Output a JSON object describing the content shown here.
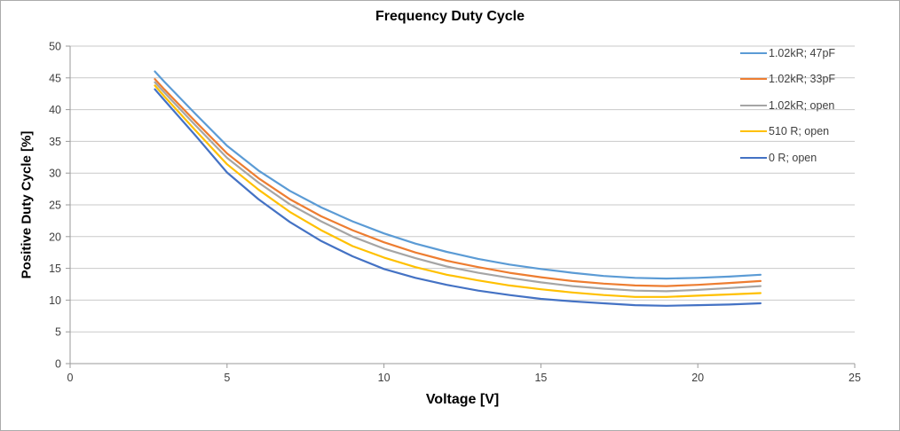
{
  "chart": {
    "title": "Frequency Duty Cycle",
    "x_axis_label": "Voltage [V]",
    "y_axis_label": "Positive Duty Cycle [%]"
  },
  "chart_data": {
    "type": "line",
    "title": "Frequency Duty Cycle",
    "xlabel": "Voltage [V]",
    "ylabel": "Positive Duty Cycle [%]",
    "xlim": [
      0,
      25
    ],
    "ylim": [
      0,
      50
    ],
    "xticks": [
      0,
      5,
      10,
      15,
      20,
      25
    ],
    "yticks": [
      0,
      5,
      10,
      15,
      20,
      25,
      30,
      35,
      40,
      45,
      50
    ],
    "grid": "horizontal-only",
    "legend_position": "right-top",
    "x": [
      2.7,
      3,
      4,
      5,
      6,
      7,
      8,
      9,
      10,
      11,
      12,
      13,
      14,
      15,
      16,
      17,
      18,
      19,
      20,
      21,
      22
    ],
    "series": [
      {
        "name": "1.02kR; 47pF",
        "color": "#5B9BD5",
        "values": [
          46.0,
          44.4,
          39.3,
          34.3,
          30.4,
          27.2,
          24.6,
          22.4,
          20.5,
          18.9,
          17.6,
          16.5,
          15.6,
          14.9,
          14.3,
          13.8,
          13.5,
          13.4,
          13.5,
          13.7,
          14.0
        ]
      },
      {
        "name": "1.02kR; 33pF",
        "color": "#ED7D31",
        "values": [
          44.8,
          43.2,
          38.1,
          33.1,
          29.2,
          25.9,
          23.2,
          21.0,
          19.1,
          17.5,
          16.2,
          15.2,
          14.3,
          13.6,
          13.0,
          12.6,
          12.3,
          12.2,
          12.4,
          12.7,
          13.0
        ]
      },
      {
        "name": "1.02kR; open",
        "color": "#A5A5A5",
        "values": [
          44.3,
          42.7,
          37.5,
          32.4,
          28.5,
          25.1,
          22.4,
          20.0,
          18.1,
          16.6,
          15.3,
          14.3,
          13.5,
          12.8,
          12.2,
          11.8,
          11.5,
          11.4,
          11.6,
          11.9,
          12.2
        ]
      },
      {
        "name": "510 R; open",
        "color": "#FFC000",
        "values": [
          43.8,
          42.1,
          36.7,
          31.4,
          27.4,
          23.9,
          21.0,
          18.5,
          16.7,
          15.2,
          14.0,
          13.1,
          12.3,
          11.7,
          11.2,
          10.8,
          10.5,
          10.5,
          10.7,
          10.9,
          11.1
        ]
      },
      {
        "name": "0 R; open",
        "color": "#4472C4",
        "values": [
          43.2,
          41.5,
          35.9,
          30.1,
          25.9,
          22.3,
          19.3,
          16.9,
          14.9,
          13.5,
          12.4,
          11.5,
          10.8,
          10.2,
          9.8,
          9.5,
          9.2,
          9.1,
          9.2,
          9.3,
          9.5
        ]
      }
    ]
  },
  "colors": {
    "gridline": "#C9C9C9",
    "axis_line": "#9A9A9A",
    "tick_label": "#3F3F3F",
    "border": "#ABABAB"
  }
}
